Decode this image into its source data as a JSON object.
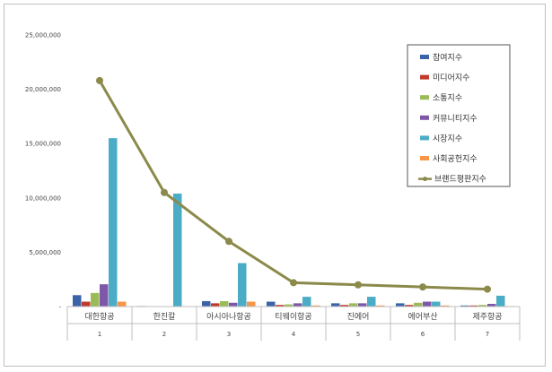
{
  "chart_data": {
    "type": "bar",
    "categories": [
      "대한항공",
      "한진칼",
      "아시아나항공",
      "티웨이항공",
      "진에어",
      "에어부산",
      "제주항공"
    ],
    "ranks": [
      "1",
      "2",
      "3",
      "4",
      "5",
      "6",
      "7"
    ],
    "ylim": [
      0,
      25000000
    ],
    "yticks": [
      "-",
      "5,000,000",
      "10,000,000",
      "15,000,000",
      "20,000,000",
      "25,000,000"
    ],
    "ytick_values": [
      0,
      5000000,
      10000000,
      15000000,
      20000000,
      25000000
    ],
    "grid": false,
    "legend_position": "top-right",
    "series": [
      {
        "name": "참여지수",
        "color": "#3a63a8",
        "values": [
          1050000,
          50000,
          500000,
          450000,
          300000,
          300000,
          100000
        ]
      },
      {
        "name": "미디어지수",
        "color": "#c0392b",
        "values": [
          450000,
          20000,
          300000,
          150000,
          150000,
          150000,
          100000
        ]
      },
      {
        "name": "소통지수",
        "color": "#9bbb59",
        "values": [
          1250000,
          30000,
          500000,
          200000,
          300000,
          350000,
          150000
        ]
      },
      {
        "name": "커뮤니티지수",
        "color": "#7e57a8",
        "values": [
          2050000,
          40000,
          350000,
          300000,
          300000,
          450000,
          250000
        ]
      },
      {
        "name": "시장지수",
        "color": "#4bacc6",
        "values": [
          15500000,
          10400000,
          4000000,
          900000,
          900000,
          450000,
          1000000
        ]
      },
      {
        "name": "사회공헌지수",
        "color": "#f79646",
        "values": [
          450000,
          30000,
          450000,
          100000,
          100000,
          100000,
          50000
        ]
      }
    ],
    "line_series": {
      "name": "브랜드평판지수",
      "color": "#8b8a4b",
      "values": [
        20800000,
        10500000,
        6000000,
        2200000,
        2000000,
        1800000,
        1600000
      ]
    }
  }
}
